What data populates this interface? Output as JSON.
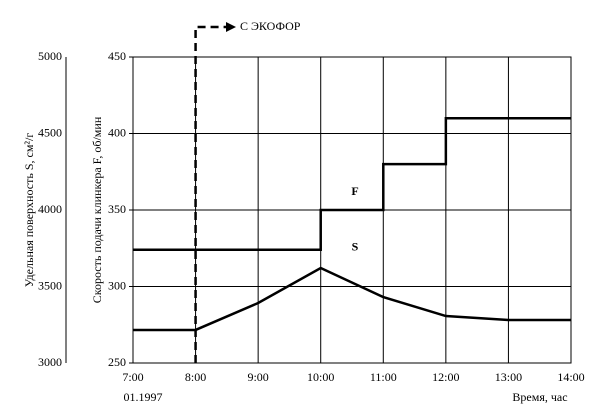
{
  "chart_data": {
    "type": "line",
    "y_label": "Удельная поверхность S, см²/г",
    "y2_label": "Скорость подачи клинкера F, об/мин",
    "x_label": "Время, час",
    "date_note": "01.1997",
    "annotation": {
      "text": "С ЭКОФОР",
      "x": 8
    },
    "xlim": [
      7,
      14
    ],
    "xticks": [
      {
        "value": 7,
        "label": "7:00"
      },
      {
        "value": 8,
        "label": "8:00"
      },
      {
        "value": 9,
        "label": "9:00"
      },
      {
        "value": 10,
        "label": "10:00"
      },
      {
        "value": 11,
        "label": "11:00"
      },
      {
        "value": 12,
        "label": "12:00"
      },
      {
        "value": 13,
        "label": "13:00"
      },
      {
        "value": 14,
        "label": "14:00"
      }
    ],
    "ylim": [
      3000,
      5000
    ],
    "yticks": [
      3000,
      3500,
      4000,
      4500,
      5000
    ],
    "y2lim": [
      250,
      450
    ],
    "y2ticks": [
      250,
      300,
      350,
      400,
      450
    ],
    "grid": true,
    "series": [
      {
        "name": "F",
        "color": "#000000",
        "axis": "y2",
        "x": [
          7,
          10,
          10,
          11,
          11,
          12,
          12,
          14
        ],
        "values": [
          324,
          324,
          350,
          350,
          380,
          380,
          410,
          410
        ]
      },
      {
        "name": "S",
        "color": "#000000",
        "x": [
          7,
          8,
          9,
          10,
          11,
          12,
          13,
          14
        ],
        "values": [
          3216,
          3216,
          3392,
          3621,
          3431,
          3307,
          3281,
          3281
        ]
      }
    ]
  }
}
